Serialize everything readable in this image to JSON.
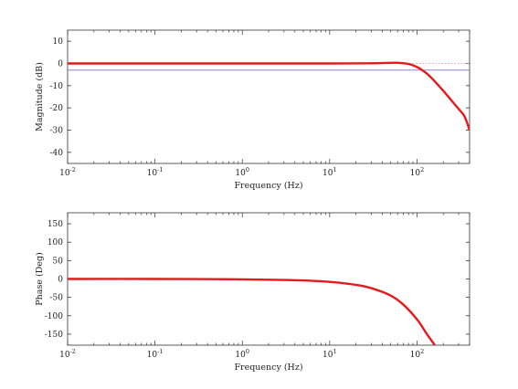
{
  "chart_data": [
    {
      "type": "line",
      "xscale": "log",
      "xlim": [
        0.01,
        400
      ],
      "ylim": [
        -45,
        15
      ],
      "xlabel": "Frequency (Hz)",
      "ylabel": "Magnitude (dB)",
      "grid": false,
      "y_ticks": [
        -40,
        -30,
        -20,
        -10,
        0,
        10
      ],
      "x_ticks": [
        {
          "base": "10",
          "exp": "-2"
        },
        {
          "base": "10",
          "exp": "-1"
        },
        {
          "base": "10",
          "exp": "0"
        },
        {
          "base": "10",
          "exp": "1"
        },
        {
          "base": "10",
          "exp": "2"
        }
      ],
      "reference_lines": [
        {
          "y": 0,
          "style": "dotted",
          "color": "#f4a3a3"
        },
        {
          "y": -3,
          "style": "solid",
          "color": "#9b80c8"
        }
      ],
      "series": [
        {
          "color": "#e41a1c",
          "x": [
            0.01,
            0.1,
            1,
            10,
            30,
            50,
            60,
            70,
            80,
            90,
            100,
            110,
            130,
            150,
            200,
            250,
            300,
            350,
            400
          ],
          "y": [
            0,
            0,
            0,
            0,
            0.1,
            0.3,
            0.3,
            0.1,
            -0.2,
            -0.8,
            -1.6,
            -2.5,
            -4.6,
            -6.9,
            -12.3,
            -16.8,
            -20.5,
            -23.8,
            -30
          ]
        }
      ]
    },
    {
      "type": "line",
      "xscale": "log",
      "xlim": [
        0.01,
        400
      ],
      "ylim": [
        -180,
        180
      ],
      "xlabel": "Frequency (Hz)",
      "ylabel": "Phase (Deg)",
      "grid": false,
      "y_ticks": [
        -150,
        -100,
        -50,
        0,
        50,
        100,
        150
      ],
      "x_ticks": [
        {
          "base": "10",
          "exp": "-2"
        },
        {
          "base": "10",
          "exp": "-1"
        },
        {
          "base": "10",
          "exp": "0"
        },
        {
          "base": "10",
          "exp": "1"
        },
        {
          "base": "10",
          "exp": "2"
        }
      ],
      "series": [
        {
          "color": "#e41a1c",
          "x": [
            0.01,
            0.1,
            1,
            2,
            5,
            10,
            20,
            30,
            50,
            70,
            100,
            130,
            160
          ],
          "y": [
            0,
            0,
            -1,
            -2,
            -4,
            -8,
            -16,
            -25,
            -45,
            -70,
            -110,
            -150,
            -180
          ]
        }
      ]
    }
  ]
}
